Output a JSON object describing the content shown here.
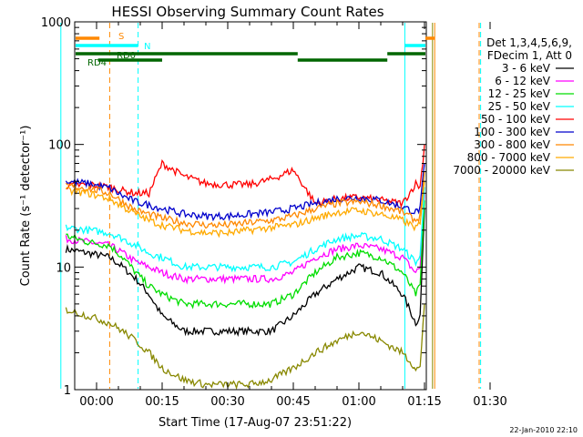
{
  "chart_data": {
    "type": "line",
    "title": "HESSI Observing Summary Count Rates",
    "xlabel": "Start Time (17-Aug-07 23:51:22)",
    "ylabel": "Count Rate (s⁻¹ detector⁻¹)",
    "y_scale": "log",
    "ylim": [
      1,
      1000
    ],
    "xlim": [
      "23:51:22",
      "01:30:00"
    ],
    "x_ticks": [
      "00:00",
      "00:15",
      "00:30",
      "00:45",
      "01:00",
      "01:15",
      "01:30"
    ],
    "y_ticks": [
      "1",
      "10",
      "100",
      "1000"
    ],
    "grid": false,
    "legend_position": "right",
    "legend_header": [
      "Det 1,3,4,5,6,9,",
      "FDecim 1, Att 0"
    ],
    "timestamp": "22-Jan-2010 22:10",
    "series": [
      {
        "name": "3 - 6 keV",
        "color": "#000000",
        "x": [
          "23:53",
          "23:58",
          "00:03",
          "00:06",
          "00:09",
          "00:12",
          "00:15",
          "00:20",
          "00:25",
          "00:30",
          "00:35",
          "00:40",
          "00:45",
          "00:50",
          "00:55",
          "01:00",
          "01:05",
          "01:10",
          "01:13",
          "01:14",
          "01:15"
        ],
        "y": [
          14,
          13,
          12,
          10,
          8,
          6,
          4,
          3,
          3,
          3,
          3,
          3,
          4,
          6,
          8,
          10,
          9,
          6,
          3.5,
          4,
          30
        ]
      },
      {
        "name": "6 - 12 keV",
        "color": "#ff00ff",
        "x": [
          "23:53",
          "23:58",
          "00:03",
          "00:06",
          "00:09",
          "00:12",
          "00:15",
          "00:20",
          "00:25",
          "00:30",
          "00:35",
          "00:40",
          "00:45",
          "00:50",
          "00:55",
          "01:00",
          "01:05",
          "01:10",
          "01:13",
          "01:14",
          "01:15"
        ],
        "y": [
          17,
          16,
          15,
          13,
          11,
          10,
          9,
          8,
          8,
          8,
          8,
          8,
          9,
          12,
          14,
          15,
          14,
          12,
          9,
          10,
          40
        ]
      },
      {
        "name": "12 - 25 keV",
        "color": "#00dd00",
        "x": [
          "23:53",
          "23:58",
          "00:03",
          "00:06",
          "00:09",
          "00:12",
          "00:15",
          "00:20",
          "00:25",
          "00:30",
          "00:35",
          "00:40",
          "00:45",
          "00:50",
          "00:55",
          "01:00",
          "01:05",
          "01:10",
          "01:13",
          "01:14",
          "01:15"
        ],
        "y": [
          18,
          16,
          15,
          12,
          9,
          7,
          6,
          5,
          5,
          5,
          5,
          5,
          6,
          9,
          12,
          13,
          12,
          9,
          6,
          7,
          35
        ]
      },
      {
        "name": "25 - 50 keV",
        "color": "#00ffff",
        "x": [
          "23:53",
          "23:58",
          "00:03",
          "00:06",
          "00:09",
          "00:12",
          "00:15",
          "00:20",
          "00:25",
          "00:30",
          "00:35",
          "00:40",
          "00:45",
          "00:50",
          "00:55",
          "01:00",
          "01:05",
          "01:10",
          "01:13",
          "01:14",
          "01:15"
        ],
        "y": [
          21,
          20,
          19,
          17,
          15,
          13,
          12,
          10,
          10,
          10,
          10,
          10,
          11,
          14,
          17,
          18,
          17,
          14,
          11,
          12,
          45
        ]
      },
      {
        "name": "50 - 100 keV",
        "color": "#ff0000",
        "x": [
          "23:53",
          "23:58",
          "00:03",
          "00:06",
          "00:09",
          "00:12",
          "00:15",
          "00:20",
          "00:25",
          "00:30",
          "00:35",
          "00:40",
          "00:45",
          "00:50",
          "00:55",
          "01:00",
          "01:05",
          "01:10",
          "01:13",
          "01:14",
          "01:15"
        ],
        "y": [
          46,
          47,
          45,
          42,
          40,
          40,
          70,
          55,
          48,
          47,
          47,
          52,
          62,
          33,
          36,
          37,
          35,
          33,
          48,
          45,
          100
        ]
      },
      {
        "name": "100 - 300 keV",
        "color": "#0000cc",
        "x": [
          "23:53",
          "23:58",
          "00:03",
          "00:06",
          "00:09",
          "00:12",
          "00:15",
          "00:20",
          "00:25",
          "00:30",
          "00:35",
          "00:40",
          "00:45",
          "00:50",
          "00:55",
          "01:00",
          "01:05",
          "01:10",
          "01:13",
          "01:14",
          "01:15"
        ],
        "y": [
          50,
          48,
          44,
          38,
          34,
          32,
          30,
          27,
          26,
          26,
          27,
          28,
          30,
          33,
          36,
          37,
          35,
          31,
          28,
          30,
          70
        ]
      },
      {
        "name": "300 - 800 keV",
        "color": "#ff8800",
        "x": [
          "23:53",
          "23:58",
          "00:03",
          "00:06",
          "00:09",
          "00:12",
          "00:15",
          "00:20",
          "00:25",
          "00:30",
          "00:35",
          "00:40",
          "00:45",
          "00:50",
          "00:55",
          "01:00",
          "01:05",
          "01:10",
          "01:13",
          "01:14",
          "01:15"
        ],
        "y": [
          46,
          44,
          40,
          34,
          29,
          27,
          25,
          23,
          22,
          22,
          23,
          24,
          26,
          30,
          33,
          34,
          32,
          28,
          24,
          26,
          60
        ]
      },
      {
        "name": "800 - 7000 keV",
        "color": "#ffaa00",
        "x": [
          "23:53",
          "23:58",
          "00:03",
          "00:06",
          "00:09",
          "00:12",
          "00:15",
          "00:20",
          "00:25",
          "00:30",
          "00:35",
          "00:40",
          "00:45",
          "00:50",
          "00:55",
          "01:00",
          "01:05",
          "01:10",
          "01:13",
          "01:14",
          "01:15"
        ],
        "y": [
          42,
          40,
          36,
          31,
          27,
          24,
          22,
          20,
          19,
          19,
          20,
          21,
          22,
          25,
          28,
          29,
          27,
          24,
          21,
          22,
          50
        ]
      },
      {
        "name": "7000 - 20000 keV",
        "color": "#888800",
        "x": [
          "23:53",
          "23:58",
          "00:03",
          "00:06",
          "00:09",
          "00:12",
          "00:15",
          "00:20",
          "00:25",
          "00:30",
          "00:35",
          "00:40",
          "00:45",
          "00:50",
          "00:55",
          "01:00",
          "01:05",
          "01:10",
          "01:13",
          "01:14",
          "01:15"
        ],
        "y": [
          4.5,
          4,
          3.5,
          3,
          2.5,
          2,
          1.5,
          1.2,
          1.1,
          1.1,
          1.1,
          1.2,
          1.5,
          2,
          2.5,
          3,
          2.5,
          2,
          1.5,
          1.5,
          5
        ]
      }
    ],
    "flag_bars": [
      {
        "label": "S",
        "color": "#ff8800"
      },
      {
        "label": "N",
        "color": "#00ffff"
      },
      {
        "label": "RD0",
        "color": "#006600"
      },
      {
        "label": "RD4",
        "color": "#006600"
      }
    ]
  }
}
